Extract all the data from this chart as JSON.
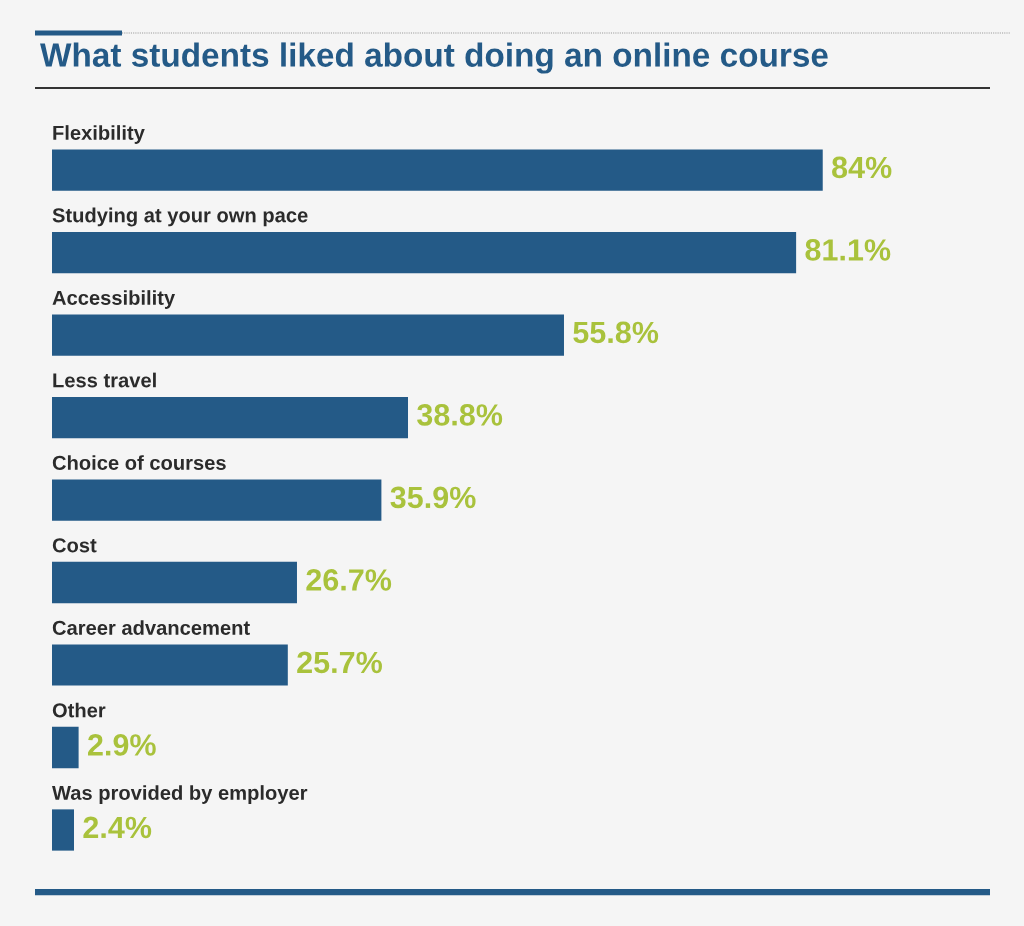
{
  "chart_data": {
    "type": "bar",
    "orientation": "horizontal",
    "title": "What students liked about doing an online course",
    "categories": [
      "Flexibility",
      "Studying at your own pace",
      "Accessibility",
      "Less travel",
      "Choice of courses",
      "Cost",
      "Career advancement",
      "Other",
      "Was provided by employer"
    ],
    "values": [
      84,
      81.1,
      55.8,
      38.8,
      35.9,
      26.7,
      25.7,
      2.9,
      2.4
    ],
    "value_labels": [
      "84%",
      "81.1%",
      "55.8%",
      "38.8%",
      "35.9%",
      "26.7%",
      "25.7%",
      "2.9%",
      "2.4%"
    ],
    "color": "#245a87"
  }
}
